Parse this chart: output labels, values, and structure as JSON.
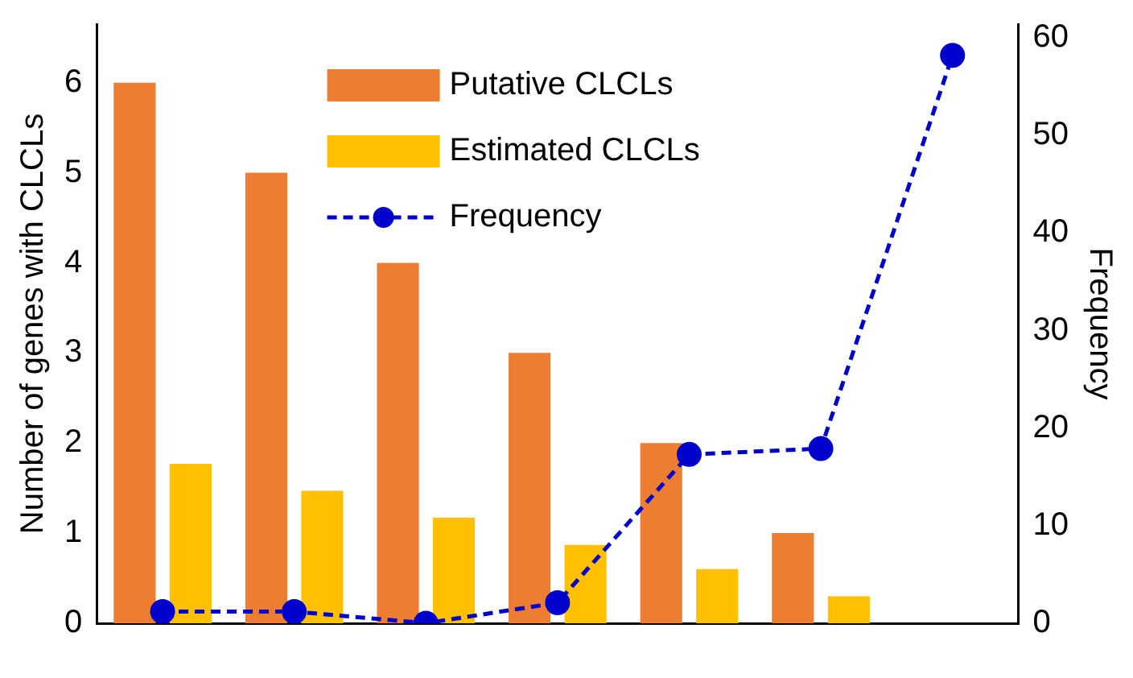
{
  "chart_data": {
    "type": "bar",
    "ylabel": "Number of genes with CLCLs",
    "y2label": "Frequency",
    "categories": [
      null,
      null,
      null,
      null,
      null,
      null,
      null
    ],
    "series": [
      {
        "name": "Putative CLCLs",
        "color": "#ed7d31",
        "values": [
          6,
          5,
          4,
          3,
          2,
          1,
          null
        ]
      },
      {
        "name": "Estimated CLCLs",
        "color": "#ffc000",
        "values": [
          1.77,
          1.47,
          1.17,
          0.87,
          0.6,
          0.3,
          null
        ]
      },
      {
        "name": "Frequency",
        "type": "line",
        "axis": "y2",
        "color": "#0000cc",
        "marker": "circle",
        "line_style": "dashed",
        "values": [
          1.2,
          1.2,
          0,
          2.1,
          17.3,
          17.9,
          58.2
        ]
      }
    ],
    "ylim": [
      0,
      6.65
    ],
    "yticks": [
      0,
      1,
      2,
      3,
      4,
      5,
      6
    ],
    "y2lim": [
      0,
      61.4
    ],
    "y2ticks": [
      0,
      10,
      20,
      30,
      40,
      50,
      60
    ],
    "grid": false,
    "legend": "top"
  }
}
